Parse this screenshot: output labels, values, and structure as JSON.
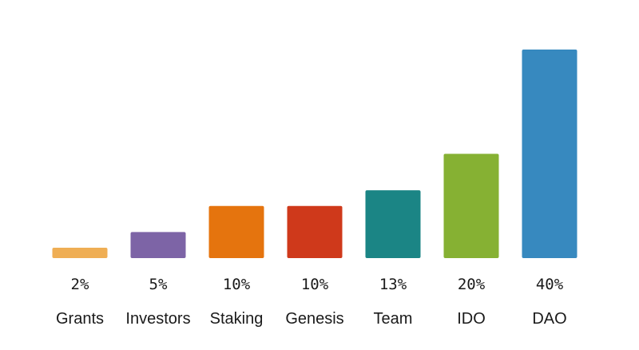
{
  "chart_data": {
    "type": "bar",
    "categories": [
      "Grants",
      "Investors",
      "Staking",
      "Genesis",
      "Team",
      "IDO",
      "DAO"
    ],
    "values": [
      2,
      5,
      10,
      10,
      13,
      20,
      40
    ],
    "value_labels": [
      "2%",
      "5%",
      "10%",
      "10%",
      "13%",
      "20%",
      "40%"
    ],
    "colors": [
      "#EFAE54",
      "#7D64A6",
      "#E5740E",
      "#CF391B",
      "#1B8585",
      "#86B133",
      "#3789BF"
    ],
    "ylim": [
      0,
      40
    ],
    "grid": false,
    "legend": "none"
  }
}
